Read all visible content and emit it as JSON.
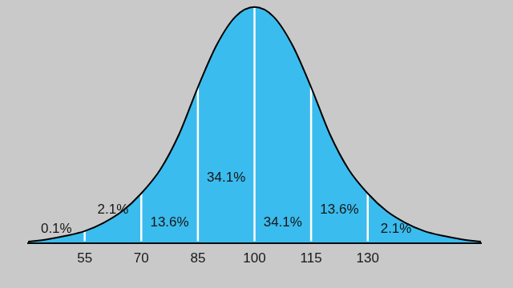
{
  "chart_data": {
    "type": "area",
    "x": [
      40,
      45,
      50,
      55,
      60,
      65,
      70,
      75,
      80,
      85,
      90,
      95,
      100,
      105,
      110,
      115,
      120,
      125,
      130,
      135,
      140,
      145,
      150,
      155,
      160
    ],
    "values": [
      0.5,
      1.5,
      3,
      5,
      8.5,
      13.5,
      21,
      31,
      46,
      66,
      84,
      96,
      100,
      96,
      84,
      66,
      46,
      31,
      21,
      13.5,
      8.5,
      5,
      3,
      1.5,
      0.5
    ],
    "color": "#3bbcee",
    "xlim": [
      40,
      160
    ],
    "xticks": [
      55,
      70,
      85,
      100,
      115,
      130
    ],
    "ylim": [
      0,
      103
    ],
    "tick_labels": "x",
    "grid": false,
    "annotations": [
      "0.1%",
      "2.1%",
      "13.6%",
      "34.1%",
      "34.1%",
      "13.6%",
      "2.1%"
    ]
  }
}
